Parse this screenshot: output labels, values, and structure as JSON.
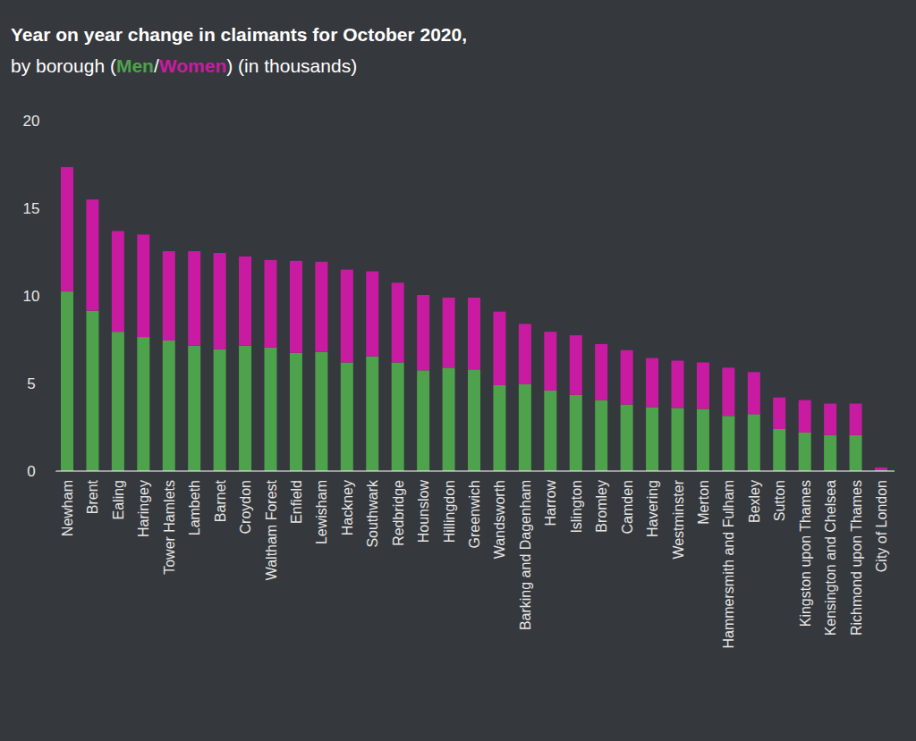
{
  "chart_data": {
    "type": "bar",
    "stacked": true,
    "grid": false,
    "title": "Year on year change in claimants for October 2020,",
    "subtitle": "by borough (Men/Women) (in thousands)",
    "categories": [
      "Newham",
      "Brent",
      "Ealing",
      "Haringey",
      "Tower Hamlets",
      "Lambeth",
      "Barnet",
      "Croydon",
      "Waltham Forest",
      "Enfield",
      "Lewisham",
      "Hackney",
      "Southwark",
      "Redbridge",
      "Hounslow",
      "Hillingdon",
      "Greenwich",
      "Wandsworth",
      "Barking and Dagenham",
      "Harrow",
      "Islington",
      "Bromley",
      "Camden",
      "Havering",
      "Westminster",
      "Merton",
      "Hammersmith and Fulham",
      "Bexley",
      "Sutton",
      "Kingston upon Thames",
      "Kensington and Chelsea",
      "Richmond upon Thames",
      "City of London"
    ],
    "series": [
      {
        "name": "Men",
        "color": "#4ea24b",
        "values": [
          10.25,
          9.15,
          7.95,
          7.65,
          7.45,
          7.15,
          6.95,
          7.15,
          7.05,
          6.75,
          6.8,
          6.2,
          6.55,
          6.2,
          5.75,
          5.9,
          5.8,
          4.9,
          4.95,
          4.6,
          4.35,
          4.05,
          3.8,
          3.65,
          3.6,
          3.55,
          3.15,
          3.25,
          2.4,
          2.2,
          2.05,
          2.05,
          0.05
        ]
      },
      {
        "name": "Women",
        "color": "#c91ba1",
        "values": [
          7.1,
          6.35,
          5.75,
          5.85,
          5.1,
          5.4,
          5.5,
          5.1,
          5.0,
          5.25,
          5.15,
          5.3,
          4.85,
          4.55,
          4.3,
          4.0,
          4.1,
          4.2,
          3.45,
          3.35,
          3.4,
          3.2,
          3.1,
          2.8,
          2.7,
          2.65,
          2.75,
          2.4,
          1.8,
          1.85,
          1.8,
          1.8,
          0.15
        ]
      }
    ],
    "ylim": [
      0,
      20
    ],
    "yticks": [
      0,
      5,
      10,
      15,
      20
    ]
  }
}
